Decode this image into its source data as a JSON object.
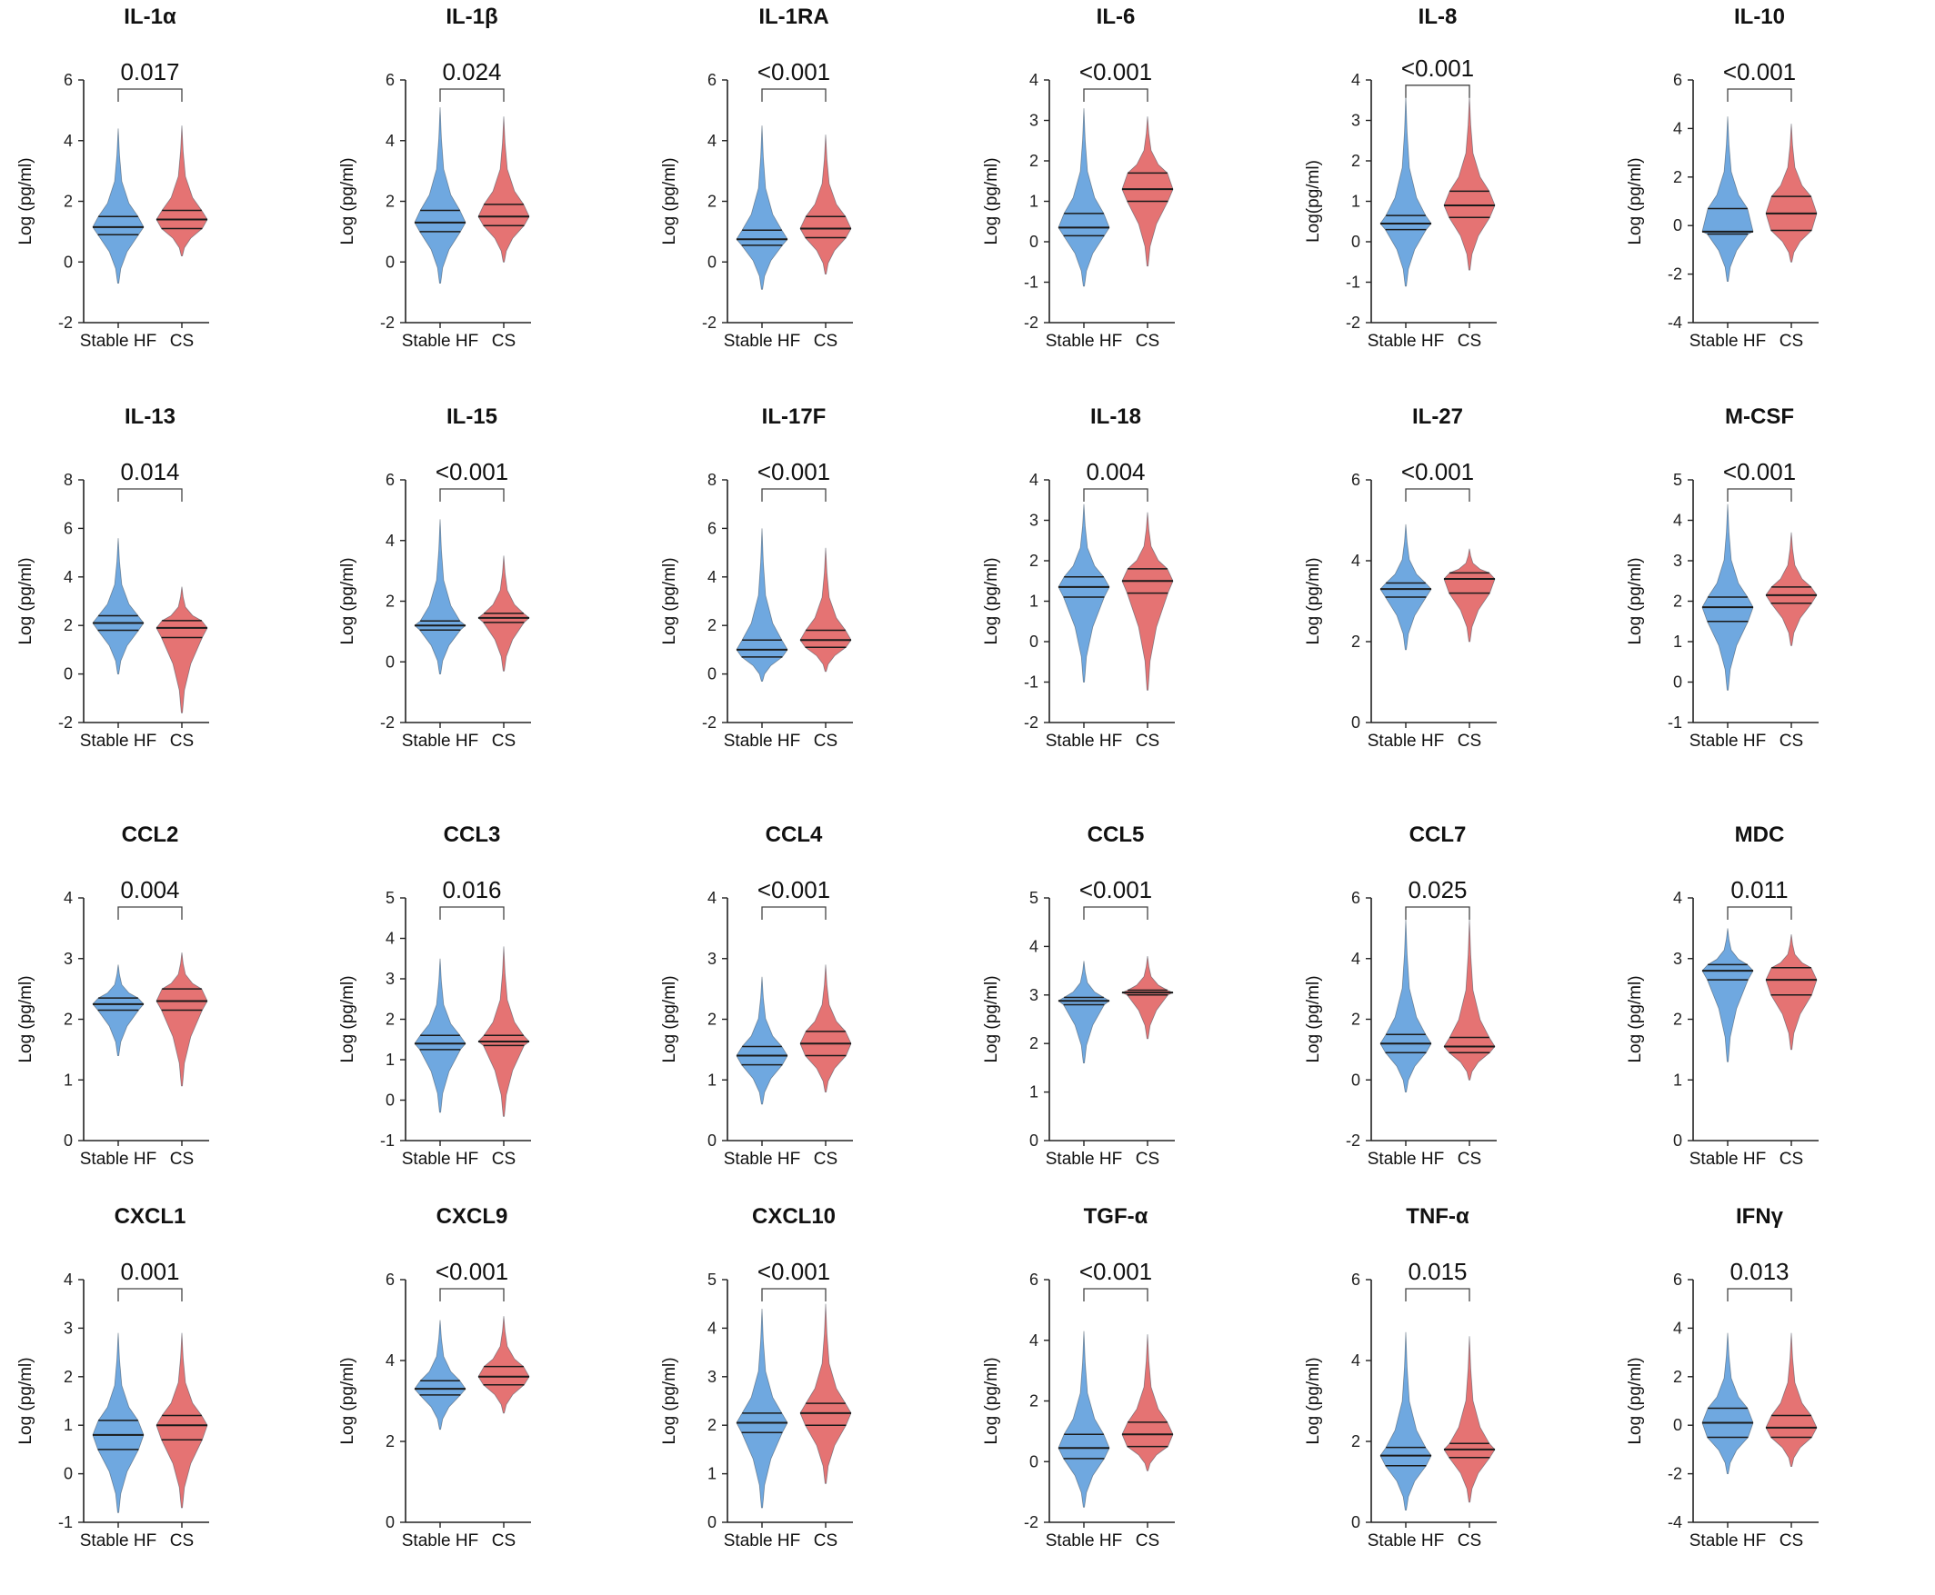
{
  "colors": {
    "stable_hf": "#6fa8e0",
    "cs": "#e57373",
    "axis": "#222222",
    "quartile": "#1a1a1a"
  },
  "chart_data": [
    {
      "type": "violin",
      "title": "IL-1α",
      "p_value": "0.017",
      "ylabel": "Log (pg/ml)",
      "ylim": [
        -2,
        6
      ],
      "yticks": [
        "-2",
        "0",
        "2",
        "4",
        "6"
      ],
      "categories": [
        "Stable HF",
        "CS"
      ],
      "series": [
        {
          "name": "Stable HF",
          "min": -0.7,
          "q1": 0.9,
          "median": 1.15,
          "q3": 1.5,
          "max": 4.4
        },
        {
          "name": "CS",
          "min": 0.2,
          "q1": 1.1,
          "median": 1.4,
          "q3": 1.7,
          "max": 4.5
        }
      ]
    },
    {
      "type": "violin",
      "title": "IL-1β",
      "p_value": "0.024",
      "ylabel": "Log (pg/ml)",
      "ylim": [
        -2,
        6
      ],
      "yticks": [
        "-2",
        "0",
        "2",
        "4",
        "6"
      ],
      "categories": [
        "Stable HF",
        "CS"
      ],
      "series": [
        {
          "name": "Stable HF",
          "min": -0.7,
          "q1": 1.0,
          "median": 1.3,
          "q3": 1.7,
          "max": 5.1
        },
        {
          "name": "CS",
          "min": 0.0,
          "q1": 1.2,
          "median": 1.5,
          "q3": 1.9,
          "max": 4.8
        }
      ]
    },
    {
      "type": "violin",
      "title": "IL-1RA",
      "p_value": "<0.001",
      "ylabel": "Log (pg/ml)",
      "ylim": [
        -2,
        6
      ],
      "yticks": [
        "-2",
        "0",
        "2",
        "4",
        "6"
      ],
      "categories": [
        "Stable HF",
        "CS"
      ],
      "series": [
        {
          "name": "Stable HF",
          "min": -0.9,
          "q1": 0.55,
          "median": 0.75,
          "q3": 1.05,
          "max": 4.5
        },
        {
          "name": "CS",
          "min": -0.4,
          "q1": 0.8,
          "median": 1.1,
          "q3": 1.5,
          "max": 4.2
        }
      ]
    },
    {
      "type": "violin",
      "title": "IL-6",
      "p_value": "<0.001",
      "ylabel": "Log (pg/ml)",
      "ylim": [
        -2,
        4
      ],
      "yticks": [
        "-2",
        "-1",
        "0",
        "1",
        "2",
        "3",
        "4"
      ],
      "categories": [
        "Stable HF",
        "CS"
      ],
      "series": [
        {
          "name": "Stable HF",
          "min": -1.1,
          "q1": 0.15,
          "median": 0.35,
          "q3": 0.7,
          "max": 3.3
        },
        {
          "name": "CS",
          "min": -0.6,
          "q1": 1.0,
          "median": 1.3,
          "q3": 1.7,
          "max": 3.1
        }
      ]
    },
    {
      "type": "violin",
      "title": "IL-8",
      "p_value": "<0.001",
      "ylabel": "Log(pg/ml)",
      "ylim": [
        -2,
        4
      ],
      "yticks": [
        "-2",
        "-1",
        "0",
        "1",
        "2",
        "3",
        "4"
      ],
      "categories": [
        "Stable HF",
        "CS"
      ],
      "series": [
        {
          "name": "Stable HF",
          "min": -1.1,
          "q1": 0.3,
          "median": 0.45,
          "q3": 0.65,
          "max": 3.6
        },
        {
          "name": "CS",
          "min": -0.7,
          "q1": 0.6,
          "median": 0.9,
          "q3": 1.25,
          "max": 3.6
        }
      ]
    },
    {
      "type": "violin",
      "title": "IL-10",
      "p_value": "<0.001",
      "ylabel": "Log (pg/ml)",
      "ylim": [
        -4,
        6
      ],
      "yticks": [
        "-4",
        "-2",
        "0",
        "2",
        "4",
        "6"
      ],
      "categories": [
        "Stable HF",
        "CS"
      ],
      "series": [
        {
          "name": "Stable HF",
          "min": -2.3,
          "q1": -0.35,
          "median": -0.25,
          "q3": 0.7,
          "max": 4.5
        },
        {
          "name": "CS",
          "min": -1.5,
          "q1": -0.2,
          "median": 0.5,
          "q3": 1.2,
          "max": 4.2
        }
      ]
    },
    {
      "type": "violin",
      "title": "IL-13",
      "p_value": "0.014",
      "ylabel": "Log (pg/ml)",
      "ylim": [
        -2,
        8
      ],
      "yticks": [
        "-2",
        "0",
        "2",
        "4",
        "6",
        "8"
      ],
      "categories": [
        "Stable HF",
        "CS"
      ],
      "series": [
        {
          "name": "Stable HF",
          "min": 0.0,
          "q1": 1.8,
          "median": 2.1,
          "q3": 2.4,
          "max": 5.6
        },
        {
          "name": "CS",
          "min": -1.6,
          "q1": 1.5,
          "median": 1.9,
          "q3": 2.2,
          "max": 3.6
        }
      ]
    },
    {
      "type": "violin",
      "title": "IL-15",
      "p_value": "<0.001",
      "ylabel": "Log (pg/ml)",
      "ylim": [
        -2,
        6
      ],
      "yticks": [
        "-2",
        "0",
        "2",
        "4",
        "6"
      ],
      "categories": [
        "Stable HF",
        "CS"
      ],
      "series": [
        {
          "name": "Stable HF",
          "min": -0.4,
          "q1": 1.05,
          "median": 1.2,
          "q3": 1.35,
          "max": 4.7
        },
        {
          "name": "CS",
          "min": -0.3,
          "q1": 1.3,
          "median": 1.45,
          "q3": 1.6,
          "max": 3.5
        }
      ]
    },
    {
      "type": "violin",
      "title": "IL-17F",
      "p_value": "<0.001",
      "ylabel": "Log (pg/ml)",
      "ylim": [
        -2,
        8
      ],
      "yticks": [
        "-2",
        "0",
        "2",
        "4",
        "6",
        "8"
      ],
      "categories": [
        "Stable HF",
        "CS"
      ],
      "series": [
        {
          "name": "Stable HF",
          "min": -0.3,
          "q1": 0.7,
          "median": 1.0,
          "q3": 1.4,
          "max": 6.0
        },
        {
          "name": "CS",
          "min": 0.1,
          "q1": 1.1,
          "median": 1.4,
          "q3": 1.8,
          "max": 5.2
        }
      ]
    },
    {
      "type": "violin",
      "title": "IL-18",
      "p_value": "0.004",
      "ylabel": "Log (pg/ml)",
      "ylim": [
        -2,
        4
      ],
      "yticks": [
        "-2",
        "-1",
        "0",
        "1",
        "2",
        "3",
        "4"
      ],
      "categories": [
        "Stable HF",
        "CS"
      ],
      "series": [
        {
          "name": "Stable HF",
          "min": -1.0,
          "q1": 1.1,
          "median": 1.35,
          "q3": 1.6,
          "max": 3.4
        },
        {
          "name": "CS",
          "min": -1.2,
          "q1": 1.2,
          "median": 1.5,
          "q3": 1.8,
          "max": 3.2
        }
      ]
    },
    {
      "type": "violin",
      "title": "IL-27",
      "p_value": "<0.001",
      "ylabel": "Log (pg/ml)",
      "ylim": [
        0,
        6
      ],
      "yticks": [
        "0",
        "2",
        "4",
        "6"
      ],
      "categories": [
        "Stable HF",
        "CS"
      ],
      "series": [
        {
          "name": "Stable HF",
          "min": 1.8,
          "q1": 3.1,
          "median": 3.3,
          "q3": 3.45,
          "max": 4.9
        },
        {
          "name": "CS",
          "min": 2.0,
          "q1": 3.2,
          "median": 3.55,
          "q3": 3.7,
          "max": 4.3
        }
      ]
    },
    {
      "type": "violin",
      "title": "M-CSF",
      "p_value": "<0.001",
      "ylabel": "Log (pg/ml)",
      "ylim": [
        -1,
        5
      ],
      "yticks": [
        "-1",
        "0",
        "1",
        "2",
        "3",
        "4",
        "5"
      ],
      "categories": [
        "Stable HF",
        "CS"
      ],
      "series": [
        {
          "name": "Stable HF",
          "min": -0.2,
          "q1": 1.5,
          "median": 1.85,
          "q3": 2.1,
          "max": 4.4
        },
        {
          "name": "CS",
          "min": 0.9,
          "q1": 1.95,
          "median": 2.15,
          "q3": 2.35,
          "max": 3.7
        }
      ]
    },
    {
      "type": "violin",
      "title": "CCL2",
      "p_value": "0.004",
      "ylabel": "Log (pg/ml)",
      "ylim": [
        0,
        4
      ],
      "yticks": [
        "0",
        "1",
        "2",
        "3",
        "4"
      ],
      "categories": [
        "Stable HF",
        "CS"
      ],
      "series": [
        {
          "name": "Stable HF",
          "min": 1.4,
          "q1": 2.15,
          "median": 2.25,
          "q3": 2.35,
          "max": 2.9
        },
        {
          "name": "CS",
          "min": 0.9,
          "q1": 2.15,
          "median": 2.3,
          "q3": 2.5,
          "max": 3.1
        }
      ]
    },
    {
      "type": "violin",
      "title": "CCL3",
      "p_value": "0.016",
      "ylabel": "Log (pg/ml)",
      "ylim": [
        -1,
        5
      ],
      "yticks": [
        "-1",
        "0",
        "1",
        "2",
        "3",
        "4",
        "5"
      ],
      "categories": [
        "Stable HF",
        "CS"
      ],
      "series": [
        {
          "name": "Stable HF",
          "min": -0.3,
          "q1": 1.25,
          "median": 1.4,
          "q3": 1.6,
          "max": 3.5
        },
        {
          "name": "CS",
          "min": -0.4,
          "q1": 1.35,
          "median": 1.45,
          "q3": 1.6,
          "max": 3.8
        }
      ]
    },
    {
      "type": "violin",
      "title": "CCL4",
      "p_value": "<0.001",
      "ylabel": "Log (pg/ml)",
      "ylim": [
        0,
        4
      ],
      "yticks": [
        "0",
        "1",
        "2",
        "3",
        "4"
      ],
      "categories": [
        "Stable HF",
        "CS"
      ],
      "series": [
        {
          "name": "Stable HF",
          "min": 0.6,
          "q1": 1.25,
          "median": 1.4,
          "q3": 1.55,
          "max": 2.7
        },
        {
          "name": "CS",
          "min": 0.8,
          "q1": 1.4,
          "median": 1.6,
          "q3": 1.8,
          "max": 2.9
        }
      ]
    },
    {
      "type": "violin",
      "title": "CCL5",
      "p_value": "<0.001",
      "ylabel": "Log (pg/ml)",
      "ylim": [
        0,
        5
      ],
      "yticks": [
        "0",
        "1",
        "2",
        "3",
        "4",
        "5"
      ],
      "categories": [
        "Stable HF",
        "CS"
      ],
      "series": [
        {
          "name": "Stable HF",
          "min": 1.6,
          "q1": 2.8,
          "median": 2.88,
          "q3": 2.95,
          "max": 3.7
        },
        {
          "name": "CS",
          "min": 2.1,
          "q1": 3.0,
          "median": 3.05,
          "q3": 3.1,
          "max": 3.8
        }
      ]
    },
    {
      "type": "violin",
      "title": "CCL7",
      "p_value": "0.025",
      "ylabel": "Log (pg/ml)",
      "ylim": [
        -2,
        6
      ],
      "yticks": [
        "-2",
        "0",
        "2",
        "4",
        "6"
      ],
      "categories": [
        "Stable HF",
        "CS"
      ],
      "series": [
        {
          "name": "Stable HF",
          "min": -0.4,
          "q1": 0.9,
          "median": 1.2,
          "q3": 1.5,
          "max": 5.3
        },
        {
          "name": "CS",
          "min": 0.0,
          "q1": 0.9,
          "median": 1.1,
          "q3": 1.4,
          "max": 5.3
        }
      ]
    },
    {
      "type": "violin",
      "title": "MDC",
      "p_value": "0.011",
      "ylabel": "Log (pg/ml)",
      "ylim": [
        0,
        4
      ],
      "yticks": [
        "0",
        "1",
        "2",
        "3",
        "4"
      ],
      "categories": [
        "Stable HF",
        "CS"
      ],
      "series": [
        {
          "name": "Stable HF",
          "min": 1.3,
          "q1": 2.65,
          "median": 2.8,
          "q3": 2.9,
          "max": 3.5
        },
        {
          "name": "CS",
          "min": 1.5,
          "q1": 2.4,
          "median": 2.65,
          "q3": 2.85,
          "max": 3.4
        }
      ]
    },
    {
      "type": "violin",
      "title": "CXCL1",
      "p_value": "0.001",
      "ylabel": "Log (pg/ml)",
      "ylim": [
        -1,
        4
      ],
      "yticks": [
        "-1",
        "0",
        "1",
        "2",
        "3",
        "4"
      ],
      "categories": [
        "Stable HF",
        "CS"
      ],
      "series": [
        {
          "name": "Stable HF",
          "min": -0.8,
          "q1": 0.5,
          "median": 0.8,
          "q3": 1.1,
          "max": 2.9
        },
        {
          "name": "CS",
          "min": -0.7,
          "q1": 0.7,
          "median": 1.0,
          "q3": 1.2,
          "max": 2.9
        }
      ]
    },
    {
      "type": "violin",
      "title": "CXCL9",
      "p_value": "<0.001",
      "ylabel": "Log (pg/ml)",
      "ylim": [
        0,
        6
      ],
      "yticks": [
        "0",
        "2",
        "4",
        "6"
      ],
      "categories": [
        "Stable HF",
        "CS"
      ],
      "series": [
        {
          "name": "Stable HF",
          "min": 2.3,
          "q1": 3.15,
          "median": 3.3,
          "q3": 3.5,
          "max": 5.0
        },
        {
          "name": "CS",
          "min": 2.7,
          "q1": 3.4,
          "median": 3.6,
          "q3": 3.85,
          "max": 5.1
        }
      ]
    },
    {
      "type": "violin",
      "title": "CXCL10",
      "p_value": "<0.001",
      "ylabel": "Log (pg/ml)",
      "ylim": [
        0,
        5
      ],
      "yticks": [
        "0",
        "1",
        "2",
        "3",
        "4",
        "5"
      ],
      "categories": [
        "Stable HF",
        "CS"
      ],
      "series": [
        {
          "name": "Stable HF",
          "min": 0.3,
          "q1": 1.85,
          "median": 2.05,
          "q3": 2.25,
          "max": 4.4
        },
        {
          "name": "CS",
          "min": 0.8,
          "q1": 2.0,
          "median": 2.25,
          "q3": 2.45,
          "max": 4.5
        }
      ]
    },
    {
      "type": "violin",
      "title": "TGF-α",
      "p_value": "<0.001",
      "ylabel": "Log (pg/ml)",
      "ylim": [
        -2,
        6
      ],
      "yticks": [
        "-2",
        "0",
        "2",
        "4",
        "6"
      ],
      "categories": [
        "Stable HF",
        "CS"
      ],
      "series": [
        {
          "name": "Stable HF",
          "min": -1.5,
          "q1": 0.1,
          "median": 0.45,
          "q3": 0.9,
          "max": 4.3
        },
        {
          "name": "CS",
          "min": -0.3,
          "q1": 0.5,
          "median": 0.9,
          "q3": 1.3,
          "max": 4.2
        }
      ]
    },
    {
      "type": "violin",
      "title": "TNF-α",
      "p_value": "0.015",
      "ylabel": "Log (pg/ml)",
      "ylim": [
        0,
        6
      ],
      "yticks": [
        "0",
        "2",
        "4",
        "6"
      ],
      "categories": [
        "Stable HF",
        "CS"
      ],
      "series": [
        {
          "name": "Stable HF",
          "min": 0.3,
          "q1": 1.4,
          "median": 1.65,
          "q3": 1.85,
          "max": 4.7
        },
        {
          "name": "CS",
          "min": 0.5,
          "q1": 1.6,
          "median": 1.8,
          "q3": 1.95,
          "max": 4.6
        }
      ]
    },
    {
      "type": "violin",
      "title": "IFNγ",
      "p_value": "0.013",
      "ylabel": "Log (pg/ml)",
      "ylim": [
        -4,
        6
      ],
      "yticks": [
        "-4",
        "-2",
        "0",
        "2",
        "4",
        "6"
      ],
      "categories": [
        "Stable HF",
        "CS"
      ],
      "series": [
        {
          "name": "Stable HF",
          "min": -2.0,
          "q1": -0.5,
          "median": 0.1,
          "q3": 0.7,
          "max": 3.8
        },
        {
          "name": "CS",
          "min": -1.7,
          "q1": -0.5,
          "median": -0.1,
          "q3": 0.4,
          "max": 3.8
        }
      ]
    }
  ]
}
